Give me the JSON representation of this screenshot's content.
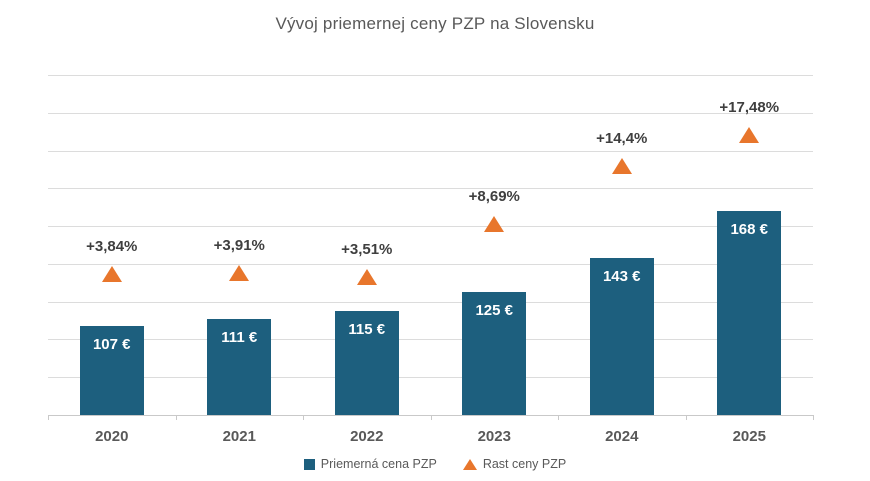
{
  "title": "Vývoj priemernej ceny PZP na Slovensku",
  "legend": {
    "series1": "Priemerná cena PZP",
    "series2": "Rast ceny PZP"
  },
  "colors": {
    "bar": "#1d5f7e",
    "growth_marker": "#e8762c",
    "gridline": "#dcdcdc",
    "title_text": "#595959",
    "growth_label_text": "#3f3f3f",
    "axis_label_text": "#595959"
  },
  "chart_data": {
    "type": "bar",
    "title": "Vývoj priemernej ceny PZP na Slovensku",
    "categories": [
      "2020",
      "2021",
      "2022",
      "2023",
      "2024",
      "2025"
    ],
    "series": [
      {
        "name": "Priemerná cena PZP",
        "type": "bar",
        "axis": "primary",
        "values": [
          107,
          111,
          115,
          125,
          143,
          168
        ],
        "labels": [
          "107 €",
          "111 €",
          "115 €",
          "125 €",
          "143 €",
          "168 €"
        ]
      },
      {
        "name": "Rast ceny PZP",
        "type": "triangle-marker",
        "axis": "secondary",
        "values": [
          3.84,
          3.91,
          3.51,
          8.69,
          14.4,
          17.48
        ],
        "labels": [
          "+3,84%",
          "+3,91%",
          "+3,51%",
          "+8,69%",
          "+14,4%",
          "+17,48%"
        ]
      }
    ],
    "primary_axis": {
      "min": 60,
      "max": 240,
      "gridline_step": 20,
      "tick_labels_visible": false
    },
    "secondary_axis": {
      "min": -10,
      "max": 23.33,
      "tick_labels_visible": false
    },
    "grid": true,
    "legend_position": "bottom"
  }
}
